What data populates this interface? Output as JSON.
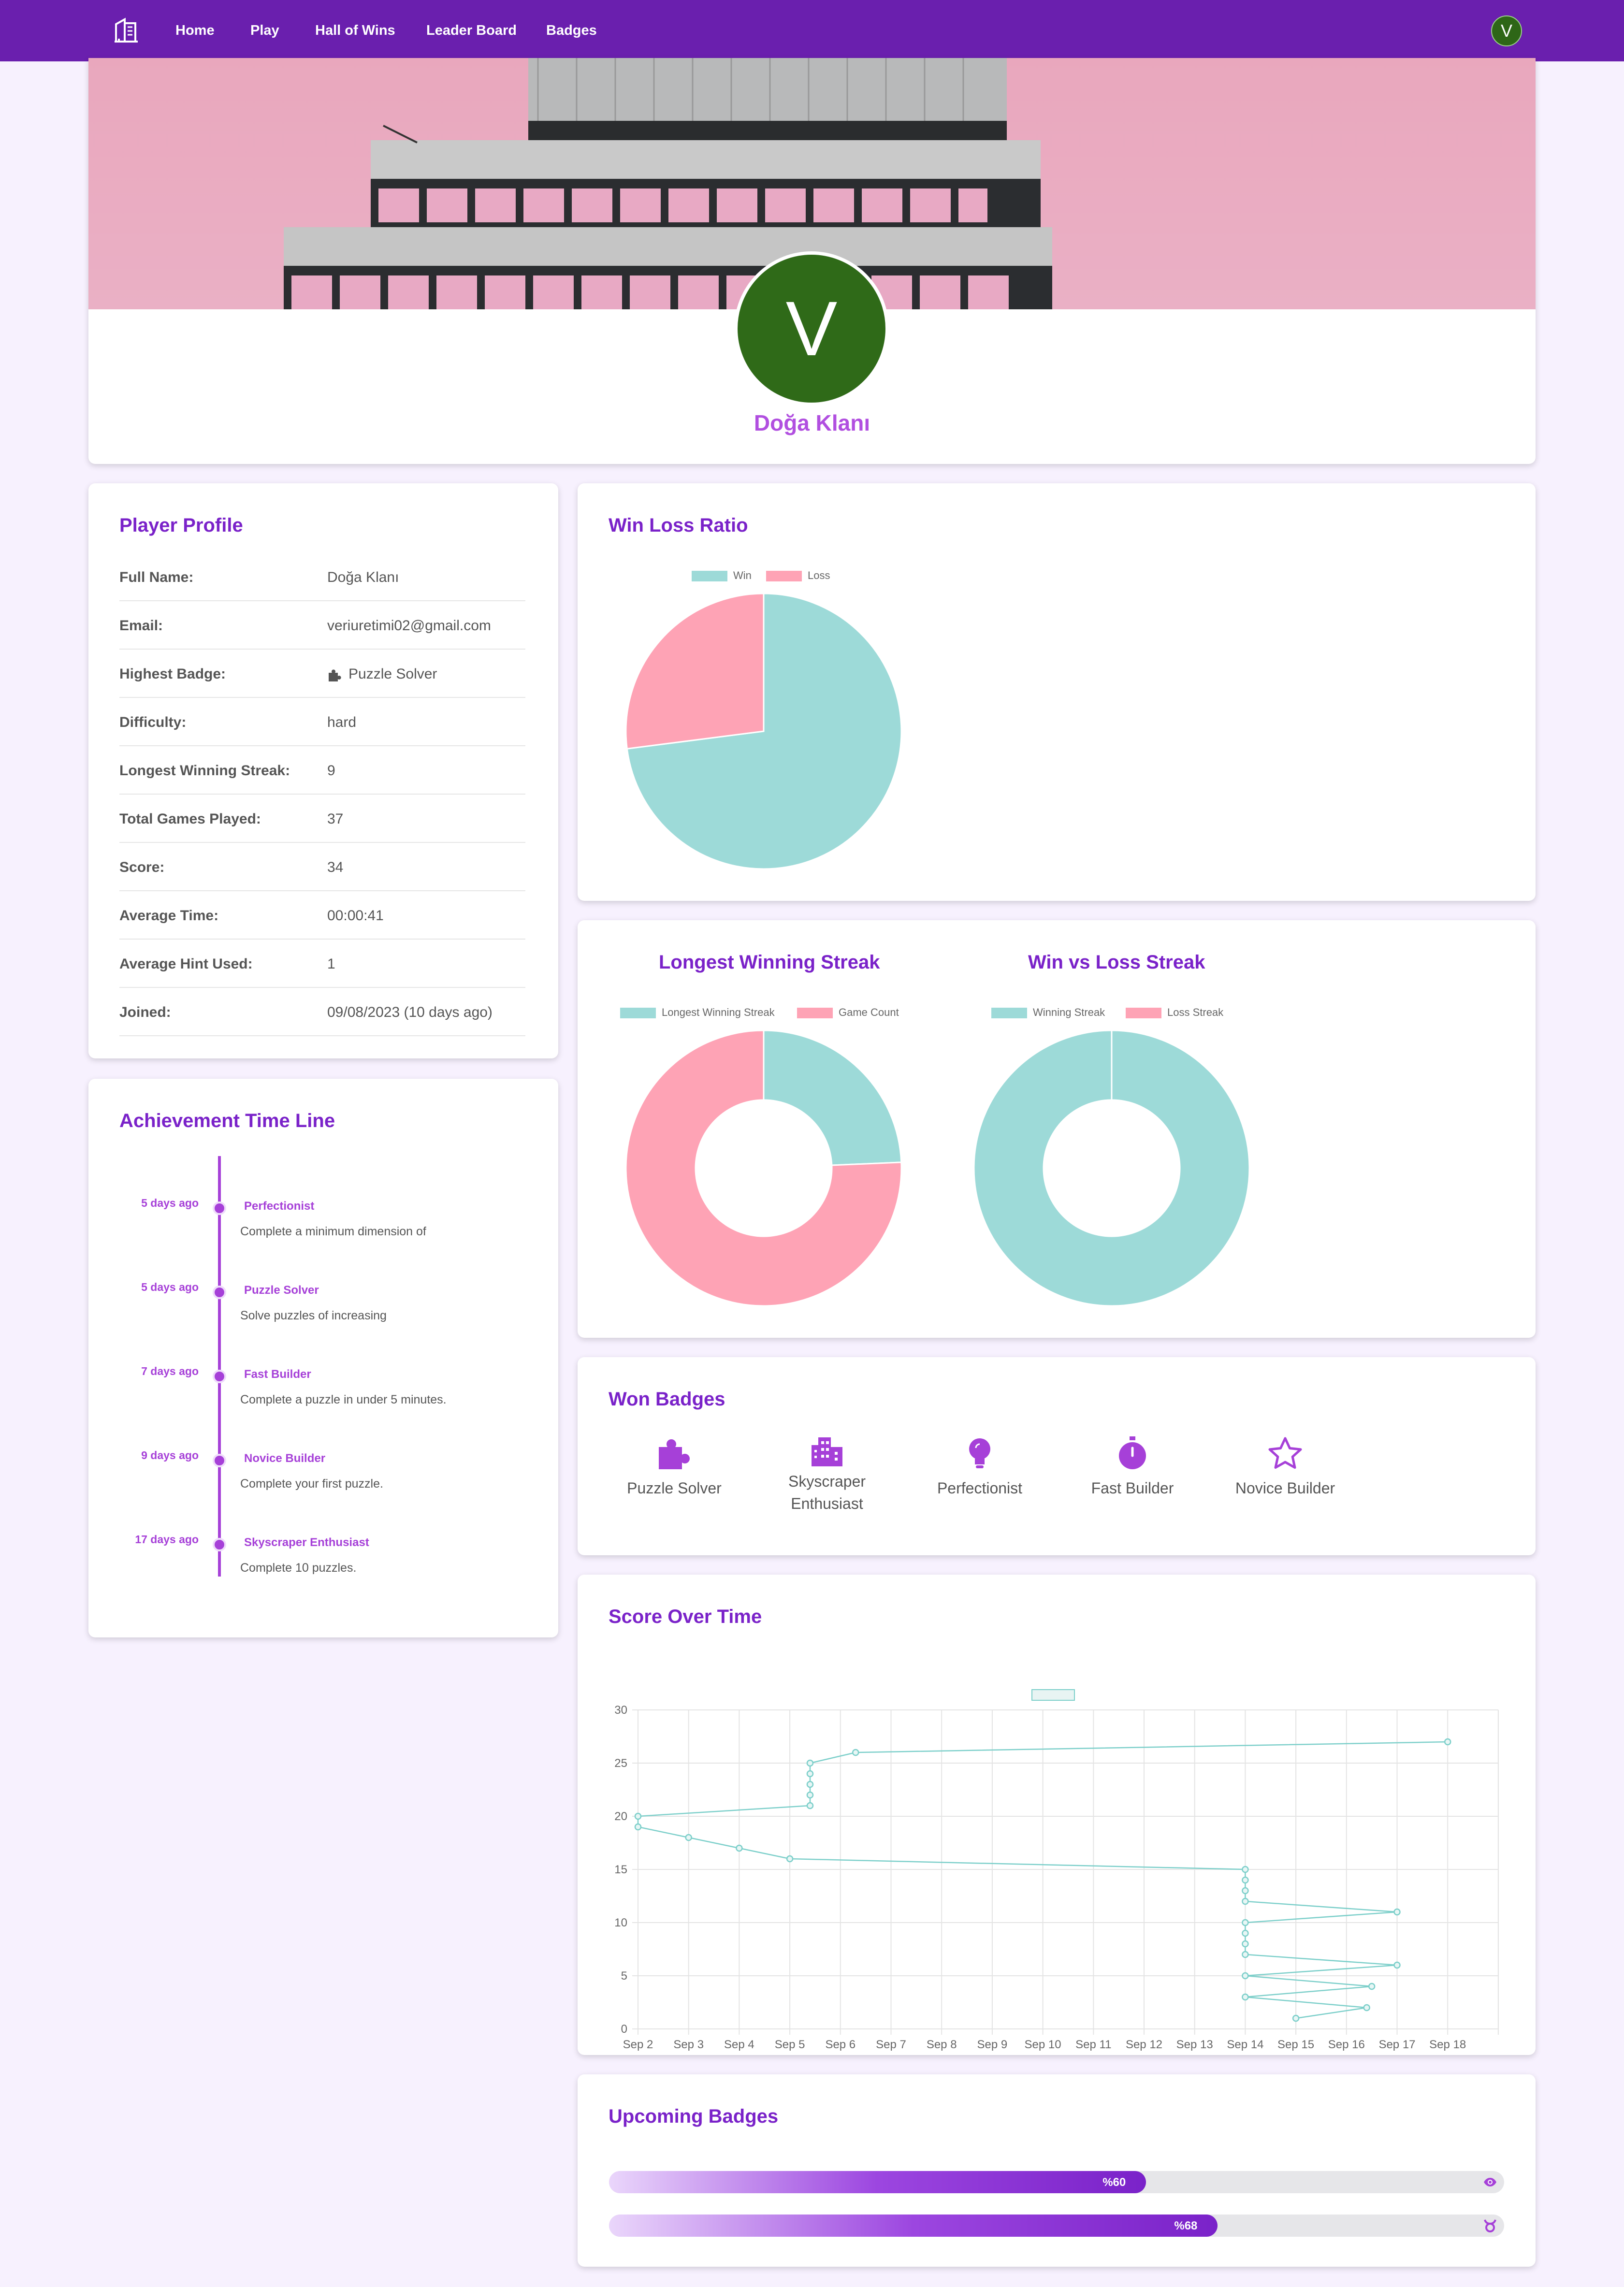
{
  "nav": {
    "logo_icon": "building-icon",
    "items": [
      {
        "label": "Home"
      },
      {
        "label": "Play"
      },
      {
        "label": "Hall of Wins"
      },
      {
        "label": "Leader Board"
      },
      {
        "label": "Badges"
      }
    ],
    "avatar_letter": "V"
  },
  "hero": {
    "avatar_letter": "V",
    "avatar_color": "#2f6a18",
    "player_name": "Doğa Klanı"
  },
  "profile": {
    "title": "Player Profile",
    "rows": [
      {
        "key": "Full Name:",
        "value": "Doğa Klanı"
      },
      {
        "key": "Email:",
        "value": "veriuretimi02@gmail.com"
      },
      {
        "key": "Highest Badge:",
        "value": "Puzzle Solver",
        "icon": "puzzle-icon"
      },
      {
        "key": "Difficulty:",
        "value": "hard"
      },
      {
        "key": "Longest Winning Streak:",
        "value": "9"
      },
      {
        "key": "Total Games Played:",
        "value": "37"
      },
      {
        "key": "Score:",
        "value": "34"
      },
      {
        "key": "Average Time:",
        "value": "00:00:41"
      },
      {
        "key": "Average Hint Used:",
        "value": "1"
      },
      {
        "key": "Joined:",
        "value": "09/08/2023 (10 days ago)"
      }
    ]
  },
  "timeline": {
    "title": "Achievement Time Line",
    "items": [
      {
        "when": "5 days ago",
        "title": "Perfectionist",
        "desc": "Complete a minimum dimension of",
        "icon": "lightbulb-icon"
      },
      {
        "when": "5 days ago",
        "title": "Puzzle Solver",
        "desc": "Solve puzzles of increasing",
        "icon": "puzzle-icon"
      },
      {
        "when": "7 days ago",
        "title": "Fast Builder",
        "desc": "Complete a puzzle in under 5 minutes.",
        "icon": "stopwatch-icon"
      },
      {
        "when": "9 days ago",
        "title": "Novice Builder",
        "desc": "Complete your first puzzle.",
        "icon": "star-icon"
      },
      {
        "when": "17 days ago",
        "title": "Skyscraper Enthusiast",
        "desc": "Complete 10 puzzles.",
        "icon": "city-icon"
      }
    ]
  },
  "winloss": {
    "title": "Win Loss Ratio",
    "legend": [
      {
        "label": "Win",
        "color": "#9ddad8"
      },
      {
        "label": "Loss",
        "color": "#fea3b5"
      }
    ]
  },
  "streak": {
    "title": "Longest Winning Streak",
    "legend": [
      {
        "label": "Longest Winning Streak",
        "color": "#9ddad8"
      },
      {
        "label": "Game Count",
        "color": "#fea3b5"
      }
    ]
  },
  "streak2": {
    "title": "Win vs Loss Streak",
    "legend": [
      {
        "label": "Winning Streak",
        "color": "#9ddad8"
      },
      {
        "label": "Loss Streak",
        "color": "#fea3b5"
      }
    ]
  },
  "won_badges": {
    "title": "Won Badges",
    "items": [
      {
        "label": "Puzzle Solver",
        "icon": "puzzle-icon"
      },
      {
        "label": "Skyscraper Enthusiast",
        "icon": "city-icon"
      },
      {
        "label": "Perfectionist",
        "icon": "lightbulb-icon"
      },
      {
        "label": "Fast Builder",
        "icon": "stopwatch-icon"
      },
      {
        "label": "Novice Builder",
        "icon": "star-icon"
      }
    ]
  },
  "score_chart": {
    "title": "Score Over Time"
  },
  "upcoming": {
    "title": "Upcoming Badges",
    "items": [
      {
        "label": "%60",
        "progress": 0.6,
        "icon": "eye-icon"
      },
      {
        "label": "%68",
        "progress": 0.68,
        "icon": "taurus-icon"
      }
    ]
  },
  "chart_data": [
    {
      "type": "pie",
      "labels": [
        "Win",
        "Loss"
      ],
      "values": [
        27,
        10
      ],
      "colors": [
        "#9ddad8",
        "#fea3b5"
      ]
    },
    {
      "type": "doughnut",
      "labels": [
        "Longest Winning Streak",
        "Game Count"
      ],
      "values": [
        9,
        28
      ],
      "colors": [
        "#9ddad8",
        "#fea3b5"
      ]
    },
    {
      "type": "doughnut",
      "labels": [
        "Winning Streak",
        "Loss Streak"
      ],
      "values": [
        9,
        0
      ],
      "colors": [
        "#9ddad8",
        "#fea3b5"
      ]
    },
    {
      "type": "line",
      "x_categories": [
        "Sep 2",
        "Sep 3",
        "Sep 4",
        "Sep 5",
        "Sep 6",
        "Sep 7",
        "Sep 8",
        "Sep 9",
        "Sep 10",
        "Sep 11",
        "Sep 12",
        "Sep 13",
        "Sep 14",
        "Sep 15",
        "Sep 16",
        "Sep 17",
        "Sep 18"
      ],
      "yticks": [
        0,
        5,
        10,
        15,
        20,
        25,
        30
      ],
      "ylim": [
        0,
        30
      ],
      "grid": true,
      "series": [
        {
          "color": "#7ccfca",
          "points": [
            [
              1.0,
              1
            ],
            [
              2.4,
              2
            ],
            [
              0.0,
              3
            ],
            [
              2.5,
              4
            ],
            [
              0.0,
              5
            ],
            [
              3.0,
              6
            ],
            [
              0.0,
              7
            ],
            [
              0.0,
              8
            ],
            [
              0.0,
              9
            ],
            [
              0.0,
              10
            ],
            [
              3.0,
              11
            ],
            [
              0.0,
              12
            ],
            [
              0.0,
              13
            ],
            [
              0.0,
              14
            ],
            [
              0.0,
              15
            ],
            [
              -9.0,
              16
            ],
            [
              -10.0,
              17
            ],
            [
              -11.0,
              18
            ],
            [
              -12.0,
              19
            ],
            [
              -12.0,
              20
            ],
            [
              -8.6,
              21
            ],
            [
              -8.6,
              22
            ],
            [
              -8.6,
              23
            ],
            [
              -8.6,
              24
            ],
            [
              -8.6,
              25
            ],
            [
              -7.7,
              26
            ],
            [
              4.0,
              27
            ]
          ]
        }
      ]
    }
  ]
}
